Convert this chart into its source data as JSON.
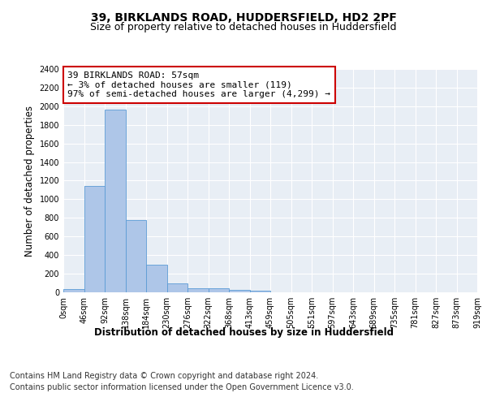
{
  "title_line1": "39, BIRKLANDS ROAD, HUDDERSFIELD, HD2 2PF",
  "title_line2": "Size of property relative to detached houses in Huddersfield",
  "xlabel": "Distribution of detached houses by size in Huddersfield",
  "ylabel": "Number of detached properties",
  "bar_color": "#aec6e8",
  "bar_edge_color": "#5b9bd5",
  "annotation_text": "39 BIRKLANDS ROAD: 57sqm\n← 3% of detached houses are smaller (119)\n97% of semi-detached houses are larger (4,299) →",
  "annotation_box_color": "#cc0000",
  "bin_labels": [
    "0sqm",
    "46sqm",
    "92sqm",
    "138sqm",
    "184sqm",
    "230sqm",
    "276sqm",
    "322sqm",
    "368sqm",
    "413sqm",
    "459sqm",
    "505sqm",
    "551sqm",
    "597sqm",
    "643sqm",
    "689sqm",
    "735sqm",
    "781sqm",
    "827sqm",
    "873sqm",
    "919sqm"
  ],
  "bar_heights": [
    35,
    1140,
    1960,
    775,
    300,
    100,
    47,
    42,
    30,
    18,
    0,
    0,
    0,
    0,
    0,
    0,
    0,
    0,
    0,
    0
  ],
  "ylim": [
    0,
    2400
  ],
  "yticks": [
    0,
    200,
    400,
    600,
    800,
    1000,
    1200,
    1400,
    1600,
    1800,
    2000,
    2200,
    2400
  ],
  "plot_bg_color": "#e8eef5",
  "footer_line1": "Contains HM Land Registry data © Crown copyright and database right 2024.",
  "footer_line2": "Contains public sector information licensed under the Open Government Licence v3.0.",
  "title_fontsize": 10,
  "subtitle_fontsize": 9,
  "axis_label_fontsize": 8.5,
  "tick_fontsize": 7,
  "footer_fontsize": 7,
  "annotation_fontsize": 8
}
